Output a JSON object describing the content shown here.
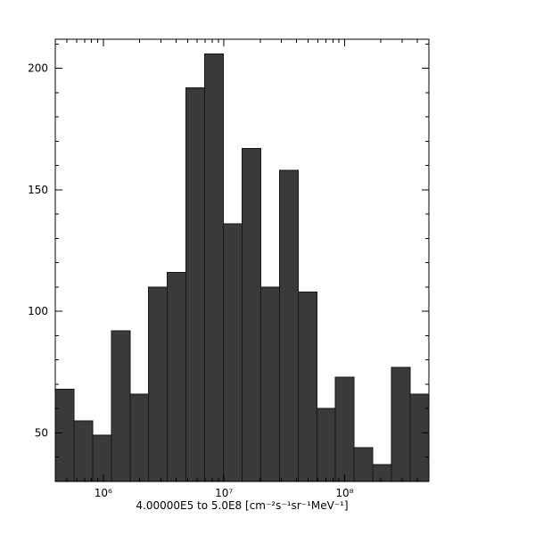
{
  "chart_data": {
    "type": "bar",
    "subtype": "histogram",
    "title": "",
    "xlabel": "4.00000E5 to 5.0E8 [cm⁻²s⁻¹sr⁻¹MeV⁻¹]",
    "ylabel": "",
    "x_scale": "log10",
    "x_range": [
      400000,
      500000000
    ],
    "y_range": [
      30,
      212
    ],
    "grid": false,
    "legend": null,
    "bin_edges": [
      400000,
      571000,
      816000,
      1166000,
      1665000,
      2378000,
      3397000,
      4852000,
      6930000,
      9899000,
      14140000,
      20200000,
      28850000,
      41210000,
      58860000,
      84080000,
      120100000,
      171500000,
      245000000,
      350000000,
      500000000
    ],
    "counts": [
      68,
      55,
      49,
      92,
      66,
      110,
      116,
      192,
      206,
      136,
      167,
      110,
      158,
      108,
      60,
      73,
      44,
      37,
      77,
      66
    ],
    "y_major_ticks": [
      50,
      100,
      150,
      200
    ],
    "y_minor_tick_step": 10,
    "x_major_ticks": [
      {
        "value": 1000000,
        "label": "10⁶"
      },
      {
        "value": 10000000,
        "label": "10⁷"
      },
      {
        "value": 100000000,
        "label": "10⁸"
      }
    ],
    "colors": {
      "background": "#ffffff",
      "bar_fill": "#3a3a3a",
      "bar_stroke": "#161616",
      "axis": "#000000",
      "text": "#000000"
    }
  }
}
